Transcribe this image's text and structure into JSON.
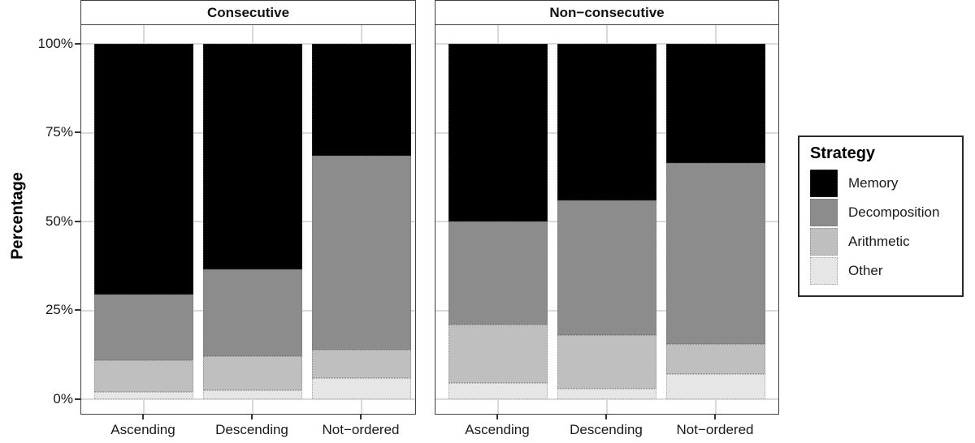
{
  "chart_data": {
    "type": "bar",
    "stacked": true,
    "ylabel": "Percentage",
    "ylim": [
      0,
      100
    ],
    "yticks": [
      "0%",
      "25%",
      "50%",
      "75%",
      "100%"
    ],
    "ytick_values": [
      0,
      25,
      50,
      75,
      100
    ],
    "grid": "major-horizontal-and-category-vertical",
    "categories": [
      "Ascending",
      "Descending",
      "Not−ordered"
    ],
    "stack_order_bottom_to_top": [
      "Other",
      "Arithmetic",
      "Decomposition",
      "Memory"
    ],
    "facets": [
      {
        "label": "Consecutive",
        "series": [
          {
            "name": "Memory",
            "values": [
              70.5,
              63.5,
              31.5
            ]
          },
          {
            "name": "Decomposition",
            "values": [
              18.5,
              24.5,
              54.5
            ]
          },
          {
            "name": "Arithmetic",
            "values": [
              9.0,
              9.5,
              8.0
            ]
          },
          {
            "name": "Other",
            "values": [
              2.0,
              2.5,
              6.0
            ]
          }
        ]
      },
      {
        "label": "Non−consecutive",
        "series": [
          {
            "name": "Memory",
            "values": [
              50.0,
              44.0,
              33.5
            ]
          },
          {
            "name": "Decomposition",
            "values": [
              29.0,
              38.0,
              51.0
            ]
          },
          {
            "name": "Arithmetic",
            "values": [
              16.5,
              15.0,
              8.5
            ]
          },
          {
            "name": "Other",
            "values": [
              4.5,
              3.0,
              7.0
            ]
          }
        ]
      }
    ],
    "legend": {
      "title": "Strategy",
      "position": "right",
      "entries": [
        {
          "label": "Memory",
          "color": "#000000"
        },
        {
          "label": "Decomposition",
          "color": "#8c8c8c"
        },
        {
          "label": "Arithmetic",
          "color": "#bfbfbf"
        },
        {
          "label": "Other",
          "color": "#e6e6e6"
        }
      ]
    }
  }
}
